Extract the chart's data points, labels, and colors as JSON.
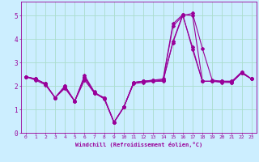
{
  "xlabel": "Windchill (Refroidissement éolien,°C)",
  "bg_color": "#cceeff",
  "grid_color": "#aaddcc",
  "line_color": "#990099",
  "x_values": [
    0,
    1,
    2,
    3,
    4,
    5,
    6,
    7,
    8,
    9,
    10,
    11,
    12,
    13,
    14,
    15,
    16,
    17,
    18,
    19,
    20,
    21,
    22,
    23
  ],
  "series1": [
    2.4,
    2.3,
    2.1,
    1.5,
    1.9,
    1.35,
    2.25,
    1.7,
    1.5,
    0.45,
    1.1,
    2.15,
    2.2,
    2.2,
    2.2,
    3.9,
    5.05,
    5.0,
    2.2,
    2.2,
    2.15,
    2.15,
    2.6,
    2.3
  ],
  "series2": [
    2.4,
    2.3,
    2.1,
    1.5,
    2.0,
    1.35,
    2.45,
    1.75,
    1.45,
    0.45,
    1.1,
    2.15,
    2.2,
    2.25,
    2.3,
    4.65,
    5.05,
    3.55,
    2.2,
    2.2,
    2.2,
    2.2,
    2.55,
    2.3
  ],
  "series3": [
    2.4,
    2.25,
    2.05,
    1.5,
    1.95,
    1.35,
    2.4,
    1.7,
    1.45,
    0.45,
    1.1,
    2.1,
    2.15,
    2.2,
    2.25,
    3.85,
    5.0,
    5.1,
    3.6,
    2.25,
    2.2,
    2.2,
    2.6,
    2.3
  ],
  "series4": [
    2.4,
    2.3,
    2.1,
    1.5,
    2.0,
    1.35,
    2.35,
    1.7,
    1.5,
    0.45,
    1.1,
    2.15,
    2.2,
    2.25,
    2.25,
    4.55,
    5.0,
    3.65,
    2.2,
    2.2,
    2.2,
    2.15,
    2.55,
    2.3
  ],
  "ylim": [
    0,
    5.6
  ],
  "yticks": [
    0,
    1,
    2,
    3,
    4,
    5
  ],
  "xticks": [
    0,
    1,
    2,
    3,
    4,
    5,
    6,
    7,
    8,
    9,
    10,
    11,
    12,
    13,
    14,
    15,
    16,
    17,
    18,
    19,
    20,
    21,
    22,
    23
  ]
}
